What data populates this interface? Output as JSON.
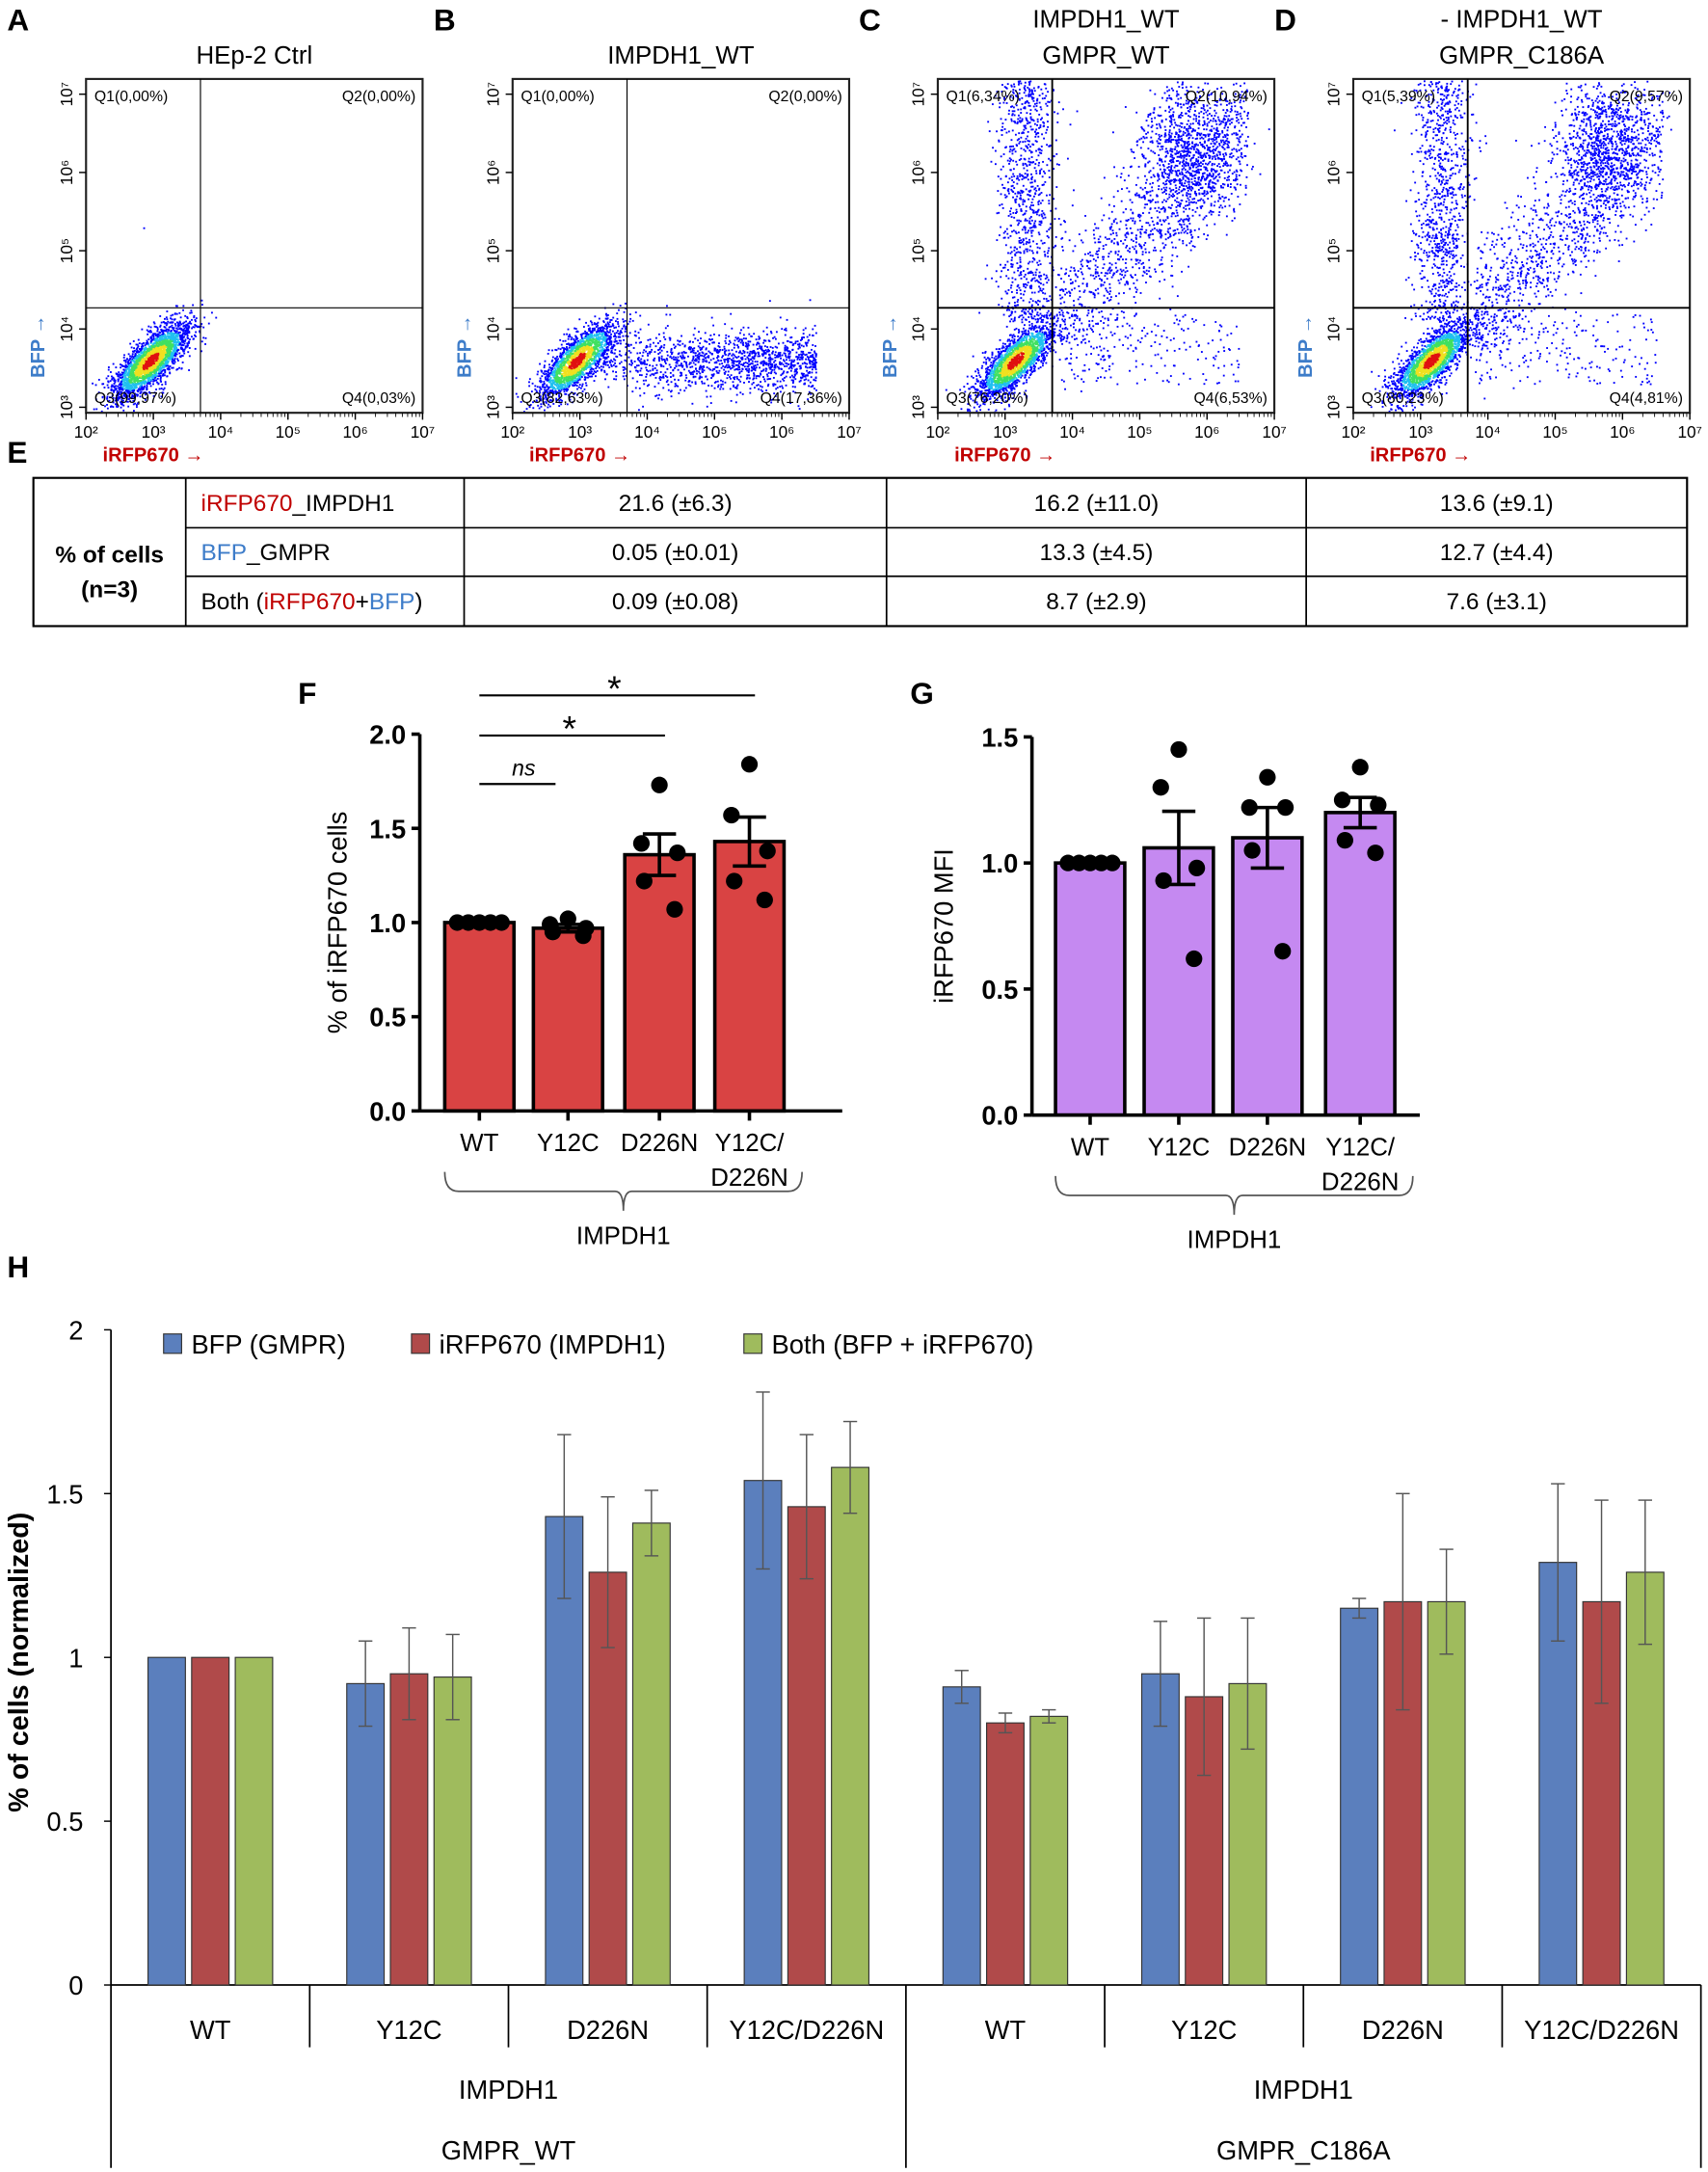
{
  "colors": {
    "ifrp_red": "#c00000",
    "bfp_blue": "#3d7cc9",
    "dot_blue": "#0000ff"
  },
  "flow": {
    "x_label": "iRFP670 →",
    "y_label": "BFP →",
    "x_ticks": [
      "10²",
      "10³",
      "10⁴",
      "10⁵",
      "10⁶",
      "10⁷"
    ],
    "y_ticks": [
      "10³",
      "10⁴",
      "10⁵",
      "10⁶",
      "10⁷"
    ],
    "panels": [
      {
        "letter": "A",
        "title": [
          "HEp-2 Ctrl"
        ],
        "quadrants": [
          "Q1(0,00%)",
          "Q2(0,00%)",
          "Q3(99,97%)",
          "Q4(0,03%)"
        ]
      },
      {
        "letter": "B",
        "title": [
          "IMPDH1_WT"
        ],
        "quadrants": [
          "Q1(0,00%)",
          "Q2(0,00%)",
          "Q3(82,63%)",
          "Q4(17,36%)"
        ]
      },
      {
        "letter": "C",
        "title": [
          "IMPDH1_WT",
          "GMPR_WT"
        ],
        "quadrants": [
          "Q1(6,34%)",
          "Q2(10,94%)",
          "Q3(76,20%)",
          "Q4(6,53%)"
        ]
      },
      {
        "letter": "D",
        "title": [
          "- IMPDH1_WT",
          "GMPR_C186A"
        ],
        "quadrants": [
          "Q1(5,39%)",
          "Q2(9,57%)",
          "Q3(80,23%)",
          "Q4(4,81%)"
        ]
      }
    ]
  },
  "table": {
    "label": "E",
    "row_header": [
      "% of cells",
      "(n=3)"
    ],
    "rows": [
      {
        "label": [
          {
            "text": "iRFP670",
            "color": "#c00000"
          },
          {
            "text": "_IMPDH1"
          }
        ],
        "values": [
          "21.6 (±6.3)",
          "16.2 (±11.0)",
          "13.6 (±9.1)"
        ]
      },
      {
        "label": [
          {
            "text": "BFP",
            "color": "#3d7cc9"
          },
          {
            "text": "_GMPR"
          }
        ],
        "values": [
          "0.05 (±0.01)",
          "13.3 (±4.5)",
          "12.7 (±4.4)"
        ]
      },
      {
        "label": [
          {
            "text": "Both ("
          },
          {
            "text": "iRFP670",
            "color": "#c00000"
          },
          {
            "text": "+"
          },
          {
            "text": "BFP",
            "color": "#3d7cc9"
          },
          {
            "text": ")"
          }
        ],
        "values": [
          "0.09 (±0.08)",
          "8.7 (±2.9)",
          "7.6 (±3.1)"
        ]
      }
    ]
  },
  "chart_data": [
    {
      "panel_label": "F",
      "type": "bar",
      "title": "",
      "ylabel": "% of iRFP670 cells",
      "ylim": [
        0,
        2.0
      ],
      "yticks": [
        "0.0",
        "0.5",
        "1.0",
        "1.5",
        "2.0"
      ],
      "categories": [
        [
          "WT"
        ],
        [
          "Y12C"
        ],
        [
          "D226N"
        ],
        [
          "Y12C/",
          "D226N"
        ]
      ],
      "group_label": "IMPDH1",
      "values": [
        1.0,
        0.97,
        1.36,
        1.43
      ],
      "sem": [
        0,
        0.02,
        0.11,
        0.13
      ],
      "points": [
        [
          1.0,
          1.0,
          1.0,
          1.0,
          1.0
        ],
        [
          1.02,
          0.99,
          0.97,
          0.95,
          0.93
        ],
        [
          1.73,
          1.42,
          1.37,
          1.22,
          1.07
        ],
        [
          1.84,
          1.57,
          1.38,
          1.22,
          1.12
        ]
      ],
      "significance": [
        {
          "from": 0,
          "to": 1,
          "label": "ns"
        },
        {
          "from": 0,
          "to": 2,
          "label": "*"
        },
        {
          "from": 0,
          "to": 3,
          "label": "*"
        }
      ],
      "bar_color": "#d94343"
    },
    {
      "panel_label": "G",
      "type": "bar",
      "title": "",
      "ylabel": "iRFP670 MFI",
      "ylim": [
        0,
        1.5
      ],
      "yticks": [
        "0.0",
        "0.5",
        "1.0",
        "1.5"
      ],
      "categories": [
        [
          "WT"
        ],
        [
          "Y12C"
        ],
        [
          "D226N"
        ],
        [
          "Y12C/",
          "D226N"
        ]
      ],
      "group_label": "IMPDH1",
      "values": [
        1.0,
        1.06,
        1.1,
        1.2
      ],
      "sem": [
        0,
        0.145,
        0.12,
        0.06
      ],
      "points": [
        [
          1.0,
          1.0,
          1.0,
          1.0,
          1.0
        ],
        [
          1.45,
          1.3,
          0.98,
          0.93,
          0.62
        ],
        [
          1.34,
          1.22,
          1.22,
          1.05,
          0.65
        ],
        [
          1.38,
          1.25,
          1.23,
          1.09,
          1.04
        ]
      ],
      "significance": [],
      "bar_color": "#c589f1"
    },
    {
      "panel_label": "H",
      "type": "bar",
      "title": "",
      "ylabel": "% of cells (normalized)",
      "ylim": [
        0,
        2
      ],
      "yticks": [
        "0",
        "0.5",
        "1",
        "1.5",
        "2"
      ],
      "legend_position": "top-left",
      "categories": [
        "WT",
        "Y12C",
        "D226N",
        "Y12C/D226N",
        "WT",
        "Y12C",
        "D226N",
        "Y12C/D226N"
      ],
      "group_labels": [
        "IMPDH1",
        "IMPDH1"
      ],
      "gmpr_labels": [
        "GMPR_WT",
        "GMPR_C186A"
      ],
      "series": [
        {
          "name": "BFP (GMPR)",
          "color": "#5b7fbd",
          "values": [
            1.0,
            0.92,
            1.43,
            1.54,
            0.91,
            0.95,
            1.15,
            1.29
          ],
          "errors": [
            0,
            0.13,
            0.25,
            0.27,
            0.05,
            0.16,
            0.03,
            0.24
          ]
        },
        {
          "name": "iRFP670 (IMPDH1)",
          "color": "#b04a4a",
          "values": [
            1.0,
            0.95,
            1.26,
            1.46,
            0.8,
            0.88,
            1.17,
            1.17
          ],
          "errors": [
            0,
            0.14,
            0.23,
            0.22,
            0.03,
            0.24,
            0.33,
            0.31
          ]
        },
        {
          "name": "Both (BFP + iRFP670)",
          "color": "#9fbb5d",
          "values": [
            1.0,
            0.94,
            1.41,
            1.58,
            0.82,
            0.92,
            1.17,
            1.26
          ],
          "errors": [
            0,
            0.13,
            0.1,
            0.14,
            0.02,
            0.2,
            0.16,
            0.22
          ]
        }
      ]
    }
  ]
}
